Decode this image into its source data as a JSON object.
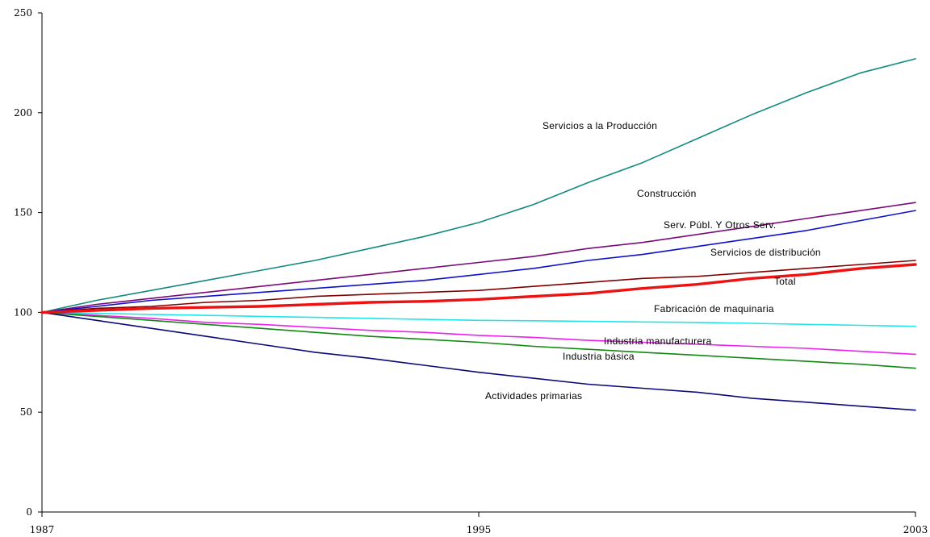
{
  "chart_data": {
    "type": "line",
    "title": "",
    "xlabel": "",
    "ylabel": "",
    "x": [
      1987,
      1988,
      1989,
      1990,
      1991,
      1992,
      1993,
      1994,
      1995,
      1996,
      1997,
      1998,
      1999,
      2000,
      2001,
      2002,
      2003
    ],
    "xlim": [
      1987,
      2003
    ],
    "ylim": [
      0,
      250
    ],
    "y_ticks": [
      0,
      50,
      100,
      150,
      200,
      250
    ],
    "x_tick_labels": [
      "1987",
      "1995",
      "2003"
    ],
    "x_tick_values": [
      1987,
      1995,
      2003
    ],
    "grid": false,
    "legend": "inline-labels",
    "series": [
      {
        "name": "Servicios a la Producción",
        "color": "#138a80",
        "width": 1.6,
        "values": [
          100,
          106,
          111,
          116,
          121,
          126,
          132,
          138,
          145,
          154,
          165,
          175,
          187,
          199,
          210,
          220,
          227
        ]
      },
      {
        "name": "Construcción",
        "color": "#7a0a78",
        "width": 1.6,
        "values": [
          100,
          104,
          107,
          110,
          113,
          116,
          119,
          122,
          125,
          128,
          132,
          135,
          139,
          143,
          147,
          151,
          155
        ]
      },
      {
        "name": "Serv. Públ. Y Otros Serv.",
        "color": "#1010c8",
        "width": 1.6,
        "values": [
          100,
          103,
          106,
          108,
          110,
          112,
          114,
          116,
          119,
          122,
          126,
          129,
          133,
          137,
          141,
          146,
          151
        ]
      },
      {
        "name": "Servicios de distribución",
        "color": "#800000",
        "width": 1.6,
        "values": [
          100,
          102,
          103,
          105,
          106,
          108,
          109,
          110,
          111,
          113,
          115,
          117,
          118,
          120,
          122,
          124,
          126
        ]
      },
      {
        "name": "Total",
        "color": "#ee1111",
        "width": 3.4,
        "values": [
          100,
          101,
          102,
          102.5,
          103,
          104,
          105,
          105.5,
          106.5,
          108,
          109.5,
          112,
          114,
          117,
          119,
          122,
          124
        ]
      },
      {
        "name": "Fabricación de maquinaria",
        "color": "#1ee6ea",
        "width": 1.6,
        "values": [
          100,
          99.5,
          99,
          98.5,
          98,
          97.5,
          97,
          96.5,
          96,
          95.8,
          95.5,
          95.2,
          95,
          94.5,
          94,
          93.5,
          93
        ]
      },
      {
        "name": "Industria manufacturera",
        "color": "#ee20ee",
        "width": 1.6,
        "values": [
          100,
          98.5,
          97,
          95,
          94,
          92.5,
          91,
          90,
          88.5,
          87.5,
          86,
          85,
          84,
          83,
          82,
          80.5,
          79
        ]
      },
      {
        "name": "Industria básica",
        "color": "#118811",
        "width": 1.6,
        "values": [
          100,
          98,
          96,
          94,
          92,
          90,
          88,
          86.5,
          85,
          83,
          81.5,
          80,
          78.5,
          77,
          75.5,
          74,
          72
        ]
      },
      {
        "name": "Actividades primarias",
        "color": "#0a0a78",
        "width": 1.6,
        "values": [
          100,
          96,
          92,
          88,
          84,
          80,
          77,
          73.5,
          70,
          67,
          64,
          62,
          60,
          57,
          55,
          53,
          51
        ]
      }
    ]
  }
}
